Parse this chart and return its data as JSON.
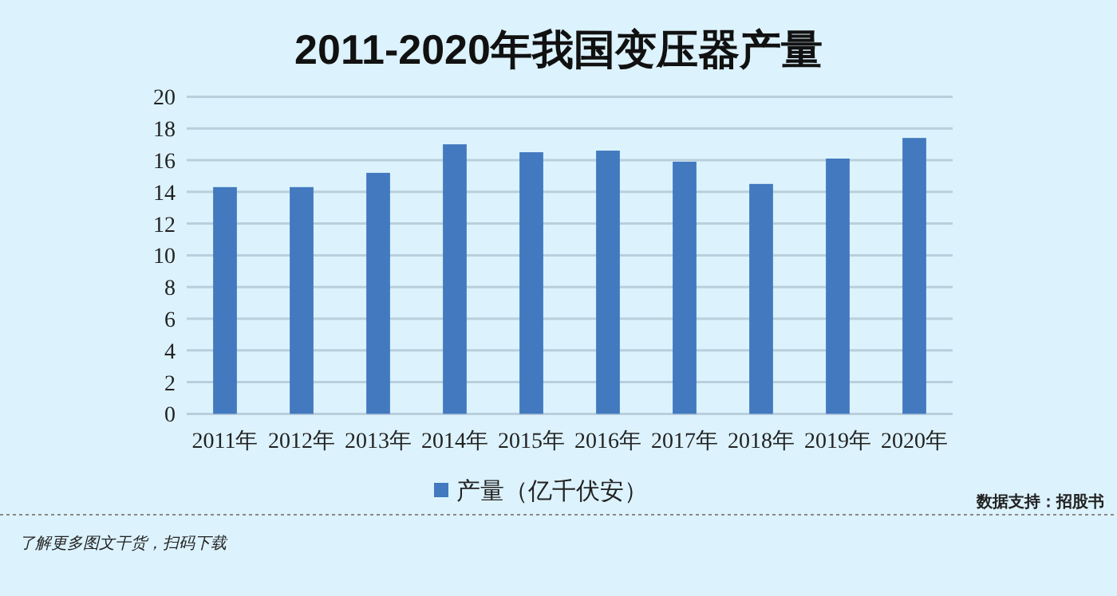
{
  "chart_data": {
    "type": "bar",
    "title": "2011-2020年我国变压器产量",
    "categories": [
      "2011年",
      "2012年",
      "2013年",
      "2014年",
      "2015年",
      "2016年",
      "2017年",
      "2018年",
      "2019年",
      "2020年"
    ],
    "series": [
      {
        "name": "产量（亿千伏安）",
        "color": "#4279bf",
        "values": [
          14.3,
          14.3,
          15.2,
          17.0,
          16.5,
          16.6,
          15.9,
          14.5,
          16.1,
          17.4
        ]
      }
    ],
    "ylim": [
      0,
      20
    ],
    "yticks": [
      0,
      2,
      4,
      6,
      8,
      10,
      12,
      14,
      16,
      18,
      20
    ],
    "grid": "y",
    "legend": "bottom",
    "annotations": [
      "数据支持：招股书",
      "了解更多图文干货，扫码下载"
    ]
  }
}
